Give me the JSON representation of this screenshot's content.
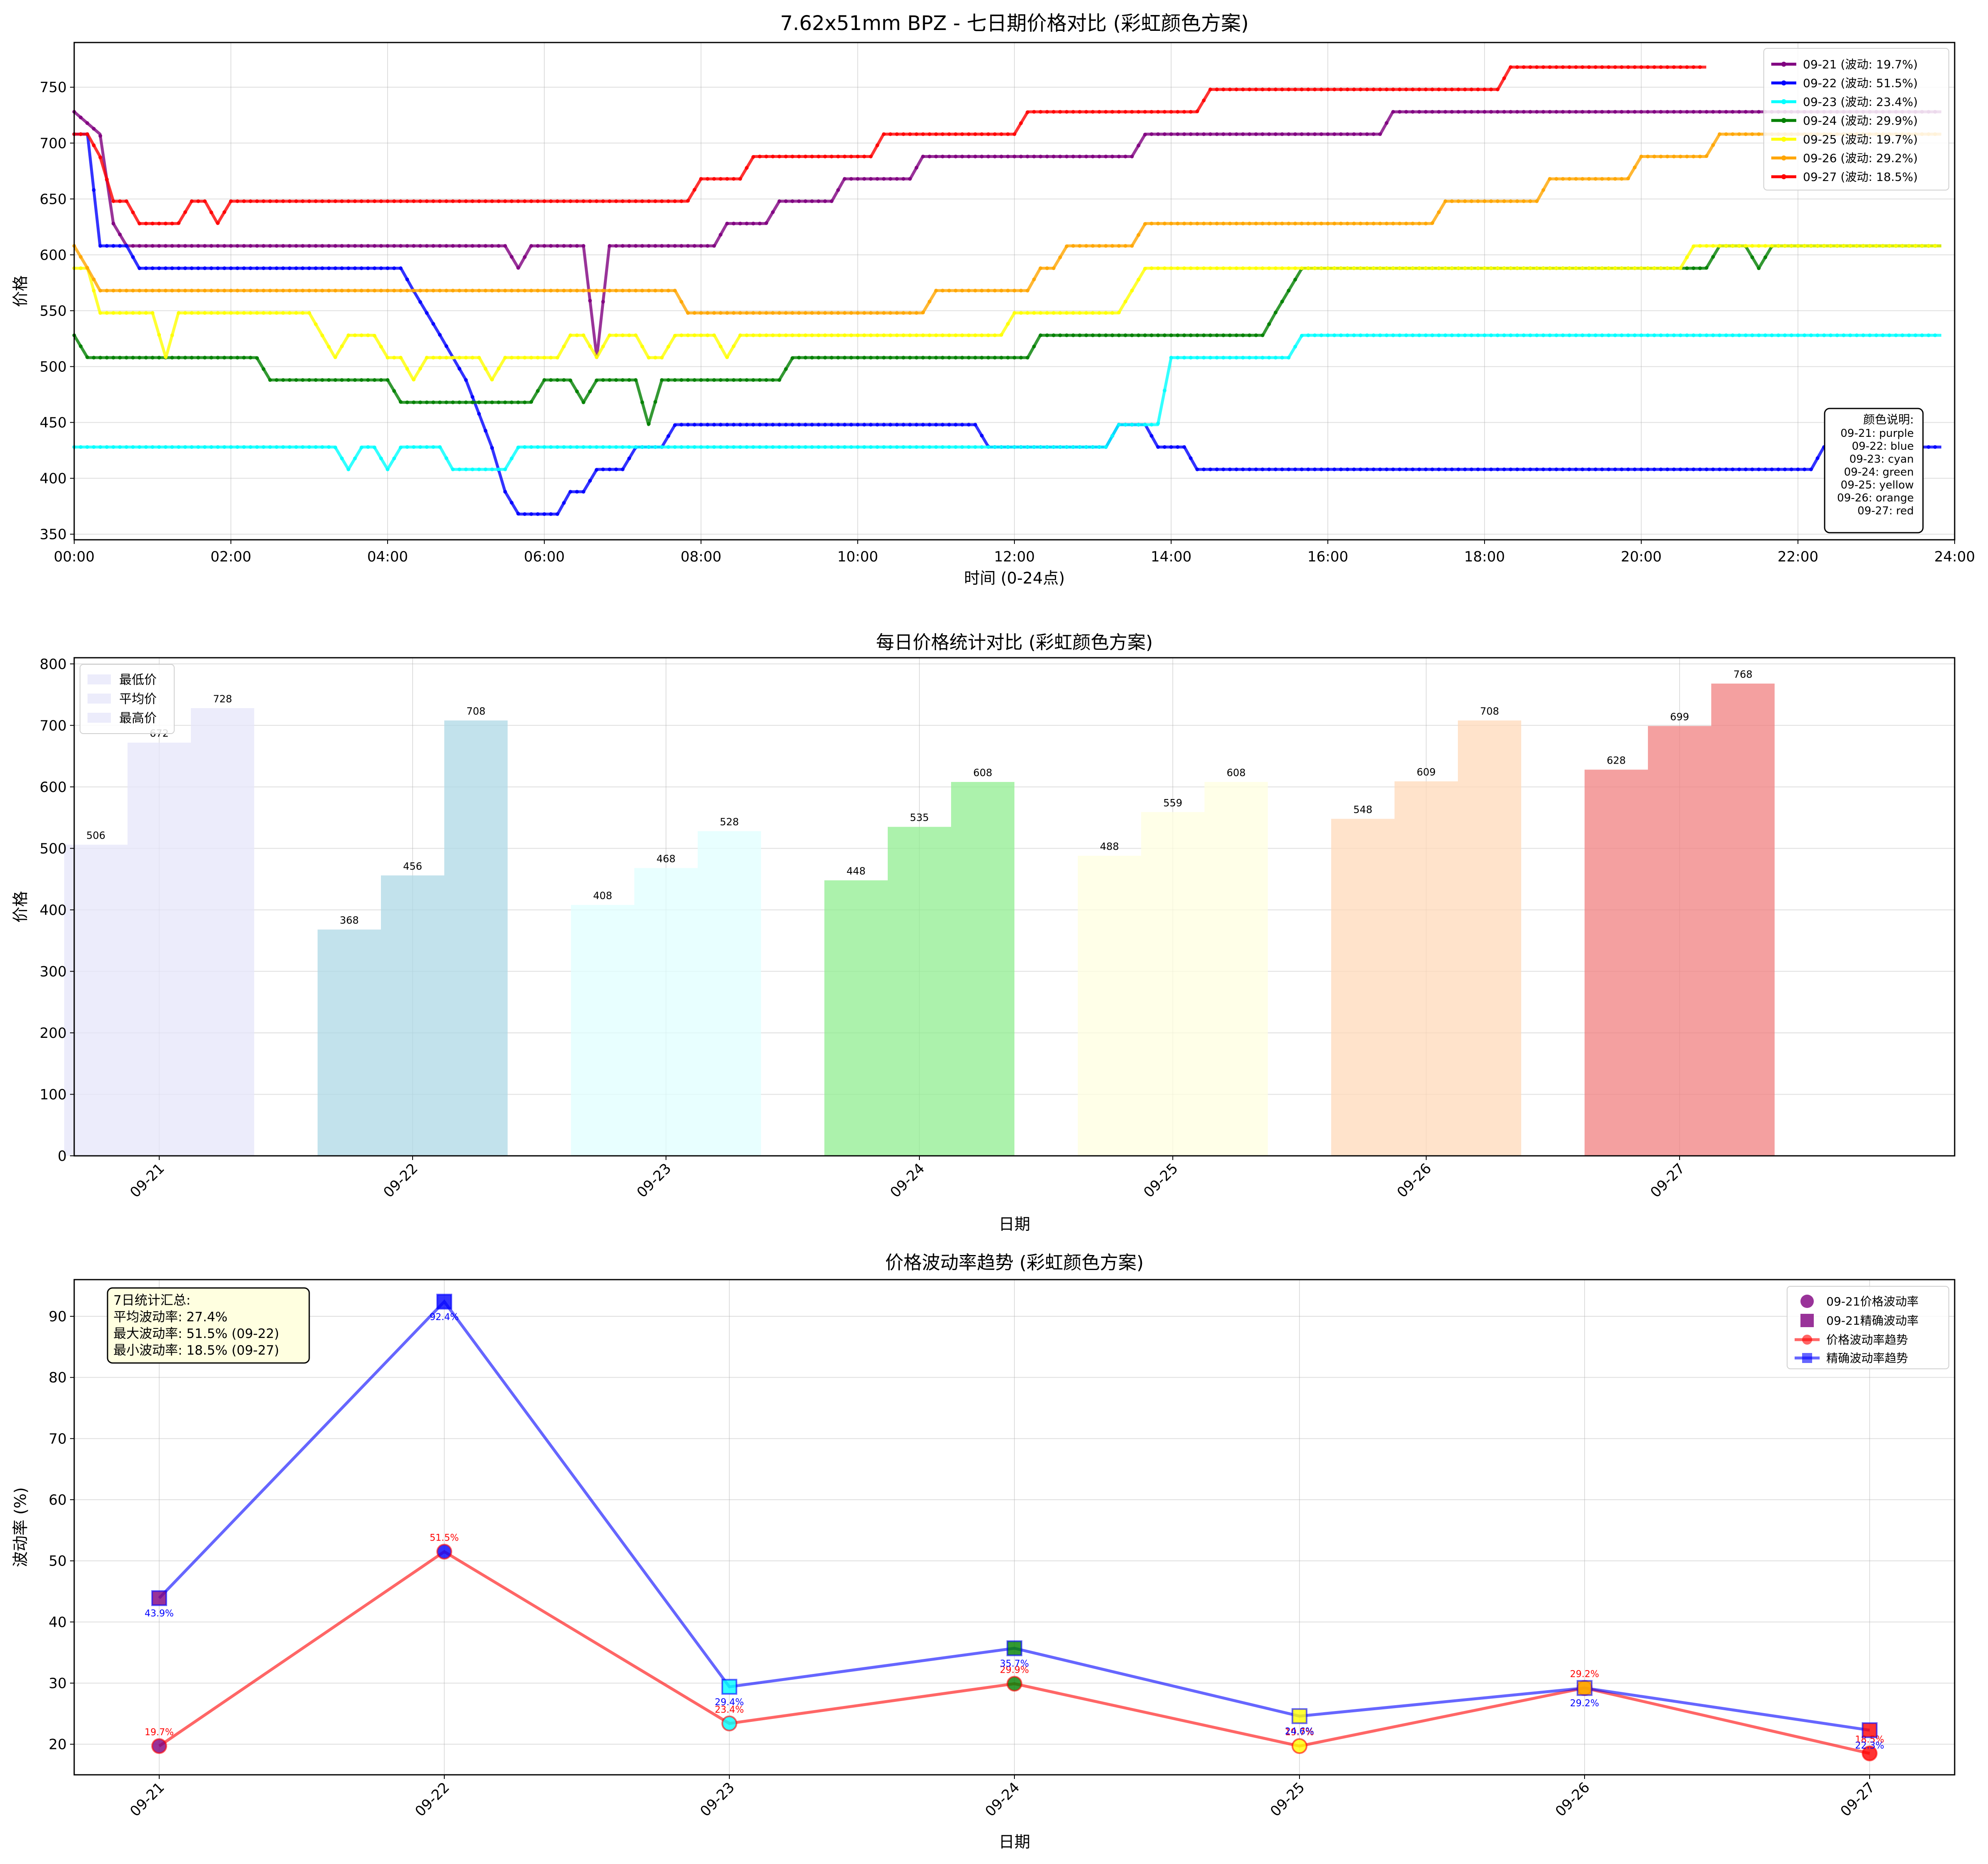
{
  "colors": {
    "09-21": "#800080",
    "09-22": "#0000ff",
    "09-23": "#00ffff",
    "09-24": "#008000",
    "09-25": "#ffff00",
    "09-26": "#ffa500",
    "09-27": "#ff0000",
    "bar_fills": [
      "#e6e6fa",
      "#add8e6",
      "#e0ffff",
      "#90ee90",
      "#ffffe0",
      "#ffdab9",
      "#f08080"
    ],
    "trend_price": "#ff0000",
    "trend_precise": "#0000ff"
  },
  "chart_data": [
    {
      "type": "line",
      "title": "7.62x51mm BPZ - 七日期价格对比 (彩虹颜色方案)",
      "xlabel": "时间 (0-24点)",
      "ylabel": "价格",
      "xlim": [
        0,
        24
      ],
      "ylim": [
        345,
        790
      ],
      "xticks": [
        "00:00",
        "02:00",
        "04:00",
        "06:00",
        "08:00",
        "10:00",
        "12:00",
        "14:00",
        "16:00",
        "18:00",
        "20:00",
        "22:00",
        "24:00"
      ],
      "yticks": [
        350,
        400,
        450,
        500,
        550,
        600,
        650,
        700,
        750
      ],
      "grid": true,
      "legend_position": "top-right",
      "series": [
        {
          "name": "09-21 (波动: 19.7%)",
          "key": "09-21",
          "points": [
            [
              0,
              728
            ],
            [
              0.33,
              708
            ],
            [
              0.5,
              628
            ],
            [
              0.67,
              608
            ],
            [
              5.5,
              608
            ],
            [
              5.67,
              588
            ],
            [
              5.83,
              608
            ],
            [
              6.5,
              608
            ],
            [
              6.67,
              508
            ],
            [
              6.83,
              608
            ],
            [
              8.17,
              608
            ],
            [
              8.33,
              628
            ],
            [
              8.83,
              628
            ],
            [
              9,
              648
            ],
            [
              9.67,
              648
            ],
            [
              9.83,
              668
            ],
            [
              10.67,
              668
            ],
            [
              10.83,
              688
            ],
            [
              13.5,
              688
            ],
            [
              13.67,
              708
            ],
            [
              16.67,
              708
            ],
            [
              16.83,
              728
            ],
            [
              23.83,
              728
            ]
          ]
        },
        {
          "name": "09-22 (波动: 51.5%)",
          "key": "09-22",
          "points": [
            [
              0,
              708
            ],
            [
              0.17,
              708
            ],
            [
              0.33,
              608
            ],
            [
              0.67,
              608
            ],
            [
              0.83,
              588
            ],
            [
              4.17,
              588
            ],
            [
              4.33,
              568
            ],
            [
              4.67,
              528
            ],
            [
              5,
              488
            ],
            [
              5.33,
              428
            ],
            [
              5.5,
              388
            ],
            [
              5.67,
              368
            ],
            [
              6.17,
              368
            ],
            [
              6.33,
              388
            ],
            [
              6.5,
              388
            ],
            [
              6.67,
              408
            ],
            [
              7,
              408
            ],
            [
              7.17,
              428
            ],
            [
              7.5,
              428
            ],
            [
              7.67,
              448
            ],
            [
              11.5,
              448
            ],
            [
              11.67,
              428
            ],
            [
              13.17,
              428
            ],
            [
              13.33,
              448
            ],
            [
              13.67,
              448
            ],
            [
              13.83,
              428
            ],
            [
              14.17,
              428
            ],
            [
              14.33,
              408
            ],
            [
              22.17,
              408
            ],
            [
              22.33,
              428
            ],
            [
              23.83,
              428
            ]
          ]
        },
        {
          "name": "09-23 (波动: 23.4%)",
          "key": "09-23",
          "points": [
            [
              0,
              428
            ],
            [
              3.33,
              428
            ],
            [
              3.5,
              408
            ],
            [
              3.67,
              428
            ],
            [
              3.83,
              428
            ],
            [
              4,
              408
            ],
            [
              4.17,
              428
            ],
            [
              4.67,
              428
            ],
            [
              4.83,
              408
            ],
            [
              5.5,
              408
            ],
            [
              5.67,
              428
            ],
            [
              13.17,
              428
            ],
            [
              13.33,
              448
            ],
            [
              13.83,
              448
            ],
            [
              14,
              508
            ],
            [
              15.5,
              508
            ],
            [
              15.67,
              528
            ],
            [
              23.83,
              528
            ]
          ]
        },
        {
          "name": "09-24 (波动: 29.9%)",
          "key": "09-24",
          "points": [
            [
              0,
              528
            ],
            [
              0.17,
              508
            ],
            [
              2.33,
              508
            ],
            [
              2.5,
              488
            ],
            [
              4,
              488
            ],
            [
              4.17,
              468
            ],
            [
              5.83,
              468
            ],
            [
              6,
              488
            ],
            [
              6.33,
              488
            ],
            [
              6.5,
              468
            ],
            [
              6.67,
              488
            ],
            [
              7.17,
              488
            ],
            [
              7.33,
              448
            ],
            [
              7.5,
              488
            ],
            [
              9,
              488
            ],
            [
              9.17,
              508
            ],
            [
              12.17,
              508
            ],
            [
              12.33,
              528
            ],
            [
              15.17,
              528
            ],
            [
              15.33,
              548
            ],
            [
              15.67,
              588
            ],
            [
              20.5,
              588
            ],
            [
              20.67,
              588
            ],
            [
              20.83,
              588
            ],
            [
              21,
              608
            ],
            [
              21.33,
              608
            ],
            [
              21.5,
              588
            ],
            [
              21.67,
              608
            ],
            [
              23.83,
              608
            ]
          ]
        },
        {
          "name": "09-25 (波动: 19.7%)",
          "key": "09-25",
          "points": [
            [
              0,
              588
            ],
            [
              0.17,
              588
            ],
            [
              0.33,
              548
            ],
            [
              1,
              548
            ],
            [
              1.17,
              508
            ],
            [
              1.33,
              548
            ],
            [
              3,
              548
            ],
            [
              3.33,
              508
            ],
            [
              3.5,
              528
            ],
            [
              3.83,
              528
            ],
            [
              4,
              508
            ],
            [
              4.17,
              508
            ],
            [
              4.33,
              488
            ],
            [
              4.5,
              508
            ],
            [
              5.17,
              508
            ],
            [
              5.33,
              488
            ],
            [
              5.5,
              508
            ],
            [
              6.17,
              508
            ],
            [
              6.33,
              528
            ],
            [
              6.5,
              528
            ],
            [
              6.67,
              508
            ],
            [
              6.83,
              528
            ],
            [
              6.83,
              528
            ],
            [
              7.17,
              528
            ],
            [
              7.33,
              508
            ],
            [
              7.5,
              508
            ],
            [
              7.67,
              528
            ],
            [
              8.17,
              528
            ],
            [
              8.33,
              508
            ],
            [
              8.5,
              528
            ],
            [
              11.83,
              528
            ],
            [
              12,
              548
            ],
            [
              13.33,
              548
            ],
            [
              13.67,
              588
            ],
            [
              20.5,
              588
            ],
            [
              20.67,
              608
            ],
            [
              23.83,
              608
            ]
          ]
        },
        {
          "name": "09-26 (波动: 29.2%)",
          "key": "09-26",
          "points": [
            [
              0,
              608
            ],
            [
              0.17,
              588
            ],
            [
              0.33,
              568
            ],
            [
              7.67,
              568
            ],
            [
              7.83,
              548
            ],
            [
              10.83,
              548
            ],
            [
              11,
              568
            ],
            [
              12.17,
              568
            ],
            [
              12.33,
              588
            ],
            [
              12.5,
              588
            ],
            [
              12.67,
              608
            ],
            [
              13.5,
              608
            ],
            [
              13.67,
              628
            ],
            [
              17.33,
              628
            ],
            [
              17.5,
              648
            ],
            [
              18.67,
              648
            ],
            [
              18.83,
              668
            ],
            [
              19.83,
              668
            ],
            [
              20,
              688
            ],
            [
              20.83,
              688
            ],
            [
              21,
              708
            ],
            [
              23.83,
              708
            ]
          ]
        },
        {
          "name": "09-27 (波动: 18.5%)",
          "key": "09-27",
          "points": [
            [
              0,
              708
            ],
            [
              0.17,
              708
            ],
            [
              0.33,
              688
            ],
            [
              0.5,
              648
            ],
            [
              0.67,
              648
            ],
            [
              0.83,
              628
            ],
            [
              1.33,
              628
            ],
            [
              1.5,
              648
            ],
            [
              1.67,
              648
            ],
            [
              1.83,
              628
            ],
            [
              2,
              648
            ],
            [
              7.83,
              648
            ],
            [
              8,
              668
            ],
            [
              8.5,
              668
            ],
            [
              8.67,
              688
            ],
            [
              10.17,
              688
            ],
            [
              10.33,
              708
            ],
            [
              12,
              708
            ],
            [
              12.17,
              728
            ],
            [
              14.33,
              728
            ],
            [
              14.5,
              748
            ],
            [
              18.17,
              748
            ],
            [
              18.33,
              768
            ],
            [
              20.83,
              768
            ]
          ]
        }
      ],
      "annotation_box": {
        "title": "颜色说明:",
        "lines": [
          "09-21: purple",
          "09-22: blue",
          "09-23: cyan",
          "09-24: green",
          "09-25: yellow",
          "09-26: orange",
          "09-27: red"
        ]
      }
    },
    {
      "type": "bar",
      "title": "每日价格统计对比 (彩虹颜色方案)",
      "xlabel": "日期",
      "ylabel": "价格",
      "ylim": [
        0,
        810
      ],
      "yticks": [
        0,
        100,
        200,
        300,
        400,
        500,
        600,
        700,
        800
      ],
      "grid": true,
      "legend_position": "top-left",
      "categories": [
        "09-21",
        "09-22",
        "09-23",
        "09-24",
        "09-25",
        "09-26",
        "09-27"
      ],
      "series": [
        {
          "name": "最低价",
          "values": [
            506,
            368,
            408,
            448,
            488,
            548,
            628
          ]
        },
        {
          "name": "平均价",
          "values": [
            672,
            456,
            468,
            535,
            559,
            609,
            699
          ]
        },
        {
          "name": "最高价",
          "values": [
            728,
            708,
            528,
            608,
            608,
            708,
            768
          ]
        }
      ]
    },
    {
      "type": "line",
      "title": "价格波动率趋势 (彩虹颜色方案)",
      "xlabel": "日期",
      "ylabel": "波动率 (%)",
      "ylim": [
        15,
        96
      ],
      "yticks": [
        20,
        30,
        40,
        50,
        60,
        70,
        80,
        90
      ],
      "grid": true,
      "legend_position": "top-right",
      "categories": [
        "09-21",
        "09-22",
        "09-23",
        "09-24",
        "09-25",
        "09-26",
        "09-27"
      ],
      "series": [
        {
          "name": "价格波动率趋势",
          "marker": "circle",
          "values": [
            19.7,
            51.5,
            23.4,
            29.9,
            19.7,
            29.2,
            18.5
          ],
          "labels": [
            "19.7%",
            "51.5%",
            "23.4%",
            "29.9%",
            "19.7%",
            "29.2%",
            "18.5%"
          ]
        },
        {
          "name": "精确波动率趋势",
          "marker": "square",
          "values": [
            43.9,
            92.4,
            29.4,
            35.7,
            24.6,
            29.2,
            22.3
          ],
          "labels": [
            "43.9%",
            "92.4%",
            "29.4%",
            "35.7%",
            "24.6%",
            "29.2%",
            "22.3%"
          ]
        }
      ],
      "legend_extra": [
        "09-21价格波动率",
        "09-21精确波动率"
      ],
      "summary_box": {
        "lines": [
          "7日统计汇总:",
          "平均波动率: 27.4%",
          "最大波动率: 51.5% (09-22)",
          "最小波动率: 18.5% (09-27)"
        ]
      }
    }
  ]
}
